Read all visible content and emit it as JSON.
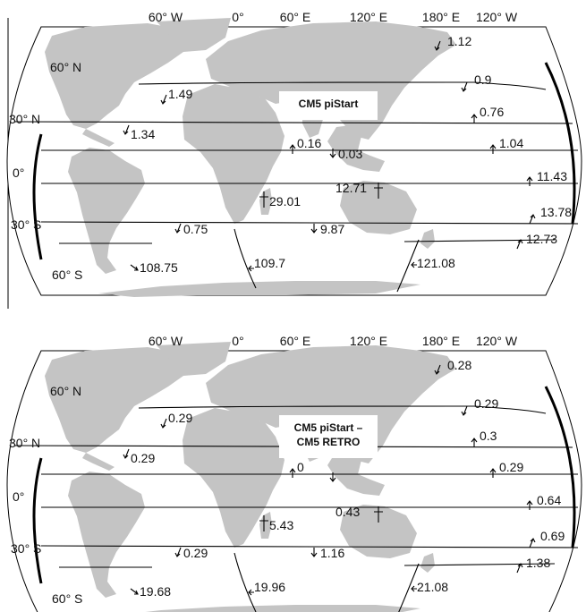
{
  "lon_labels": [
    "60° W",
    "0°",
    "60° E",
    "120° E",
    "180° E",
    "120° W"
  ],
  "lat_labels": [
    "60° N",
    "30° N",
    "0°",
    "30° S",
    "60° S"
  ],
  "panels": [
    {
      "title_lines": [
        "CM5 piStart"
      ],
      "values": {
        "bering": "1.12",
        "n_pacific_65": "0.9",
        "n_atl_47": "1.49",
        "n_pacific_35": "0.76",
        "atl_26": "1.34",
        "mediterranean": "0.16",
        "red_sea": "0.03",
        "pacific_eq": "1.04",
        "pacific_5s": "11.43",
        "indonesian": "12.71",
        "mozambique": "29.01",
        "tasman": "13.78",
        "atl_32s": "0.75",
        "indian_32s": "9.87",
        "pacific_40s": "12.73",
        "drake": "108.75",
        "africa_acc": "109.7",
        "australia_acc": "121.08"
      }
    },
    {
      "title_lines": [
        "CM5 piStart –",
        "CM5 RETRO"
      ],
      "values": {
        "bering": "0.28",
        "n_pacific_65": "0.29",
        "n_atl_47": "0.29",
        "n_pacific_35": "0.3",
        "atl_26": "0.29",
        "mediterranean": "0",
        "red_sea": "",
        "pacific_eq": "0.29",
        "pacific_5s": "0.64",
        "indonesian": "0.43",
        "mozambique": "5.43",
        "tasman": "0.69",
        "atl_32s": "0.29",
        "indian_32s": "1.16",
        "pacific_40s": "1.38",
        "drake": "19.68",
        "africa_acc": "19.96",
        "australia_acc": "21.08"
      }
    }
  ]
}
